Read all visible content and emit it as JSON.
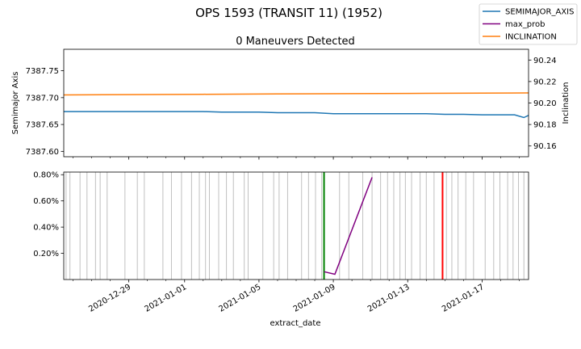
{
  "figure": {
    "suptitle": "OPS 1593 (TRANSIT 11) (1952)"
  },
  "legend": {
    "placement": "top-right",
    "entries": [
      {
        "label": "SEMIMAJOR_AXIS",
        "color": "#1f77b4"
      },
      {
        "label": "max_prob",
        "color": "#800080"
      },
      {
        "label": "INCLINATION",
        "color": "#ff7f0e"
      }
    ]
  },
  "chart_data": [
    {
      "type": "line",
      "title": "0 Maneuvers Detected",
      "xlabel": "",
      "ylabel": "Semimajor Axis",
      "ylabel_right": "Inclination",
      "xlim": [
        "2020-12-25T12:00",
        "2021-01-19T12:00"
      ],
      "ylim": [
        7387.59,
        7387.79
      ],
      "ylim_right": [
        90.15,
        90.25
      ],
      "yticks": [
        7387.6,
        7387.65,
        7387.7,
        7387.75
      ],
      "ytick_labels": [
        "7387.60",
        "7387.65",
        "7387.70",
        "7387.75"
      ],
      "yticks_right": [
        90.16,
        90.18,
        90.2,
        90.22,
        90.24
      ],
      "ytick_labels_right": [
        "90.16",
        "90.18",
        "90.20",
        "90.22",
        "90.24"
      ],
      "grid": false,
      "series": [
        {
          "name": "SEMIMAJOR_AXIS",
          "axis": "left",
          "color": "#1f77b4",
          "x": [
            "2020-12-25T12:00",
            "2020-12-28",
            "2020-12-31",
            "2021-01-02",
            "2021-01-03",
            "2021-01-05",
            "2021-01-06",
            "2021-01-07",
            "2021-01-08",
            "2021-01-09",
            "2021-01-10",
            "2021-01-12",
            "2021-01-14",
            "2021-01-15",
            "2021-01-16",
            "2021-01-17",
            "2021-01-18",
            "2021-01-18T18:00",
            "2021-01-19T06:00",
            "2021-01-19T12:00"
          ],
          "y": [
            7387.674,
            7387.674,
            7387.674,
            7387.674,
            7387.673,
            7387.673,
            7387.672,
            7387.672,
            7387.672,
            7387.67,
            7387.67,
            7387.67,
            7387.67,
            7387.669,
            7387.669,
            7387.668,
            7387.668,
            7387.668,
            7387.663,
            7387.667
          ]
        },
        {
          "name": "INCLINATION",
          "axis": "right",
          "color": "#ff7f0e",
          "x": [
            "2020-12-25T12:00",
            "2020-12-29",
            "2021-01-02",
            "2021-01-06",
            "2021-01-10",
            "2021-01-14",
            "2021-01-17",
            "2021-01-19T12:00"
          ],
          "y": [
            90.2075,
            90.2078,
            90.2081,
            90.2084,
            90.2087,
            90.209,
            90.2092,
            90.2094
          ]
        }
      ]
    },
    {
      "type": "line",
      "title": "",
      "xlabel": "extract_date",
      "ylabel": "",
      "xlim": [
        "2020-12-25T12:00",
        "2021-01-19T12:00"
      ],
      "ylim": [
        0.0,
        0.0082
      ],
      "yticks": [
        0.002,
        0.004,
        0.006,
        0.008
      ],
      "ytick_labels": [
        "0.20%",
        "0.40%",
        "0.60%",
        "0.80%"
      ],
      "xtick_labels": [
        "2020-12-29",
        "2021-01-01",
        "2021-01-05",
        "2021-01-09",
        "2021-01-13",
        "2021-01-17"
      ],
      "xticks": [
        "2020-12-29",
        "2021-01-01",
        "2021-01-05",
        "2021-01-09",
        "2021-01-13",
        "2021-01-17"
      ],
      "grid": false,
      "series": [
        {
          "name": "max_prob",
          "color": "#800080",
          "x": [
            "2021-01-08T12:00",
            "2021-01-09T02:00",
            "2021-01-11T02:00"
          ],
          "y": [
            0.0006,
            0.0004,
            0.0078
          ]
        }
      ],
      "event_lines": [
        "2020-12-25T15:00",
        "2020-12-25T20:00",
        "2020-12-26T09:00",
        "2020-12-26T18:00",
        "2020-12-27T05:00",
        "2020-12-27T11:00",
        "2020-12-27T20:00",
        "2020-12-28T19:00",
        "2020-12-29T11:00",
        "2020-12-29T20:00",
        "2020-12-30T20:00",
        "2020-12-31T07:00",
        "2020-12-31T20:00",
        "2021-01-01T09:00",
        "2021-01-01T19:00",
        "2021-01-02T03:00",
        "2021-01-02T08:00",
        "2021-01-02T20:00",
        "2021-01-03T06:00",
        "2021-01-03T15:00",
        "2021-01-04T05:00",
        "2021-01-04T10:00",
        "2021-01-05T05:00",
        "2021-01-05T19:00",
        "2021-01-06T02:00",
        "2021-01-06T13:00",
        "2021-01-07T07:00",
        "2021-01-07T16:00",
        "2021-01-08T01:00",
        "2021-01-08T09:00",
        "2021-01-09T08:00",
        "2021-01-09T20:00",
        "2021-01-10T14:00",
        "2021-01-11T02:00",
        "2021-01-11T13:00",
        "2021-01-11T22:00",
        "2021-01-12T06:00",
        "2021-01-12T14:00",
        "2021-01-12T21:00",
        "2021-01-13T05:00",
        "2021-01-13T16:00",
        "2021-01-14T00:00",
        "2021-01-14T10:00",
        "2021-01-15T02:00",
        "2021-01-15T09:00",
        "2021-01-15T17:00",
        "2021-01-16T03:00",
        "2021-01-16T13:00",
        "2021-01-17T04:00",
        "2021-01-17T15:00",
        "2021-01-17T23:00",
        "2021-01-18T09:00",
        "2021-01-18T16:00",
        "2021-01-18T23:00",
        "2021-01-19T06:00"
      ],
      "markers": [
        {
          "date": "2021-01-08T12:00",
          "color": "#008000"
        },
        {
          "date": "2021-01-14T21:00",
          "color": "#ff0000"
        }
      ]
    }
  ]
}
